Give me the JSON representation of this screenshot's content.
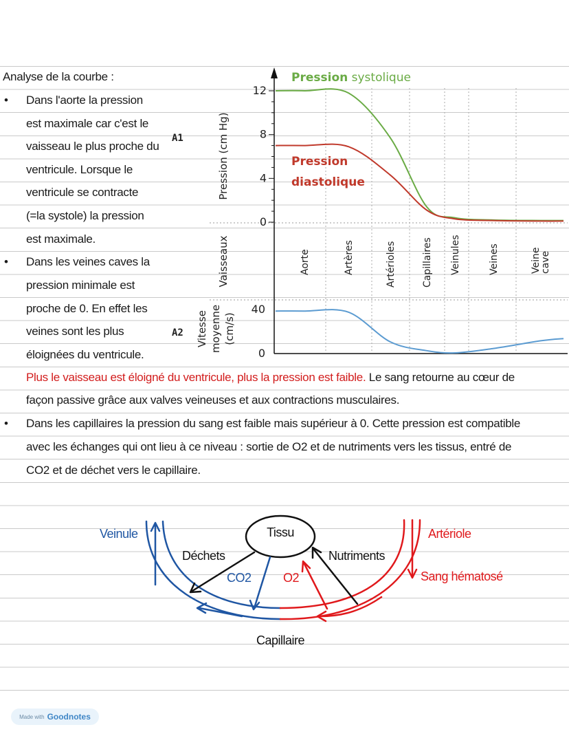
{
  "notes": {
    "title": "Analyse de la courbe :",
    "left_lines": [
      "Dans l'aorte la pression",
      "est maximale car c'est le",
      "vaisseau le plus proche du",
      "ventricule. Lorsque le",
      "ventricule se contracte",
      "(=la systole) la pression",
      "est maximale.",
      "Dans les veines caves la",
      "pression minimale est",
      "proche de 0. En effet les",
      "veines sont les plus",
      "éloignées du ventricule."
    ],
    "conclusion_red": "Plus le vaisseau est éloigné du ventricule, plus la pression est faible.",
    "conclusion_black": " Le sang retourne au cœur de",
    "conclusion_line2": "façon passive grâce aux valves veineuses et aux contractions musculaires.",
    "capillary_lines": [
      "Dans les capillaires la pression du sang est faible mais supérieur à 0. Cette pression est compatible",
      "avec les échanges qui ont lieu à ce niveau : sortie de O2 et de nutriments vers les tissus, entré de",
      "CO2 et de déchet vers le capillaire."
    ],
    "bullet_glyph": "•"
  },
  "chart_data": [
    {
      "type": "line",
      "panel_label": "A1",
      "ylabel": "Pression (cm Hg)",
      "ylim": [
        0,
        12
      ],
      "yticks": [
        "0",
        "4",
        "8",
        "12"
      ],
      "categories": [
        "Aorte",
        "Artères",
        "Artérioles",
        "Capillaires",
        "Veinules",
        "Veines",
        "Veine cave"
      ],
      "xlabel": "Vaisseaux",
      "series": [
        {
          "name_bold": "Pression",
          "name_rest": " systolique",
          "color": "#6aab45",
          "values": [
            12,
            11.8,
            7.7,
            1.4,
            0.4,
            0.2,
            0.15
          ]
        },
        {
          "name_bold": "Pression",
          "name_rest": "diastolique",
          "color": "#c0392b",
          "values": [
            7,
            6.9,
            4.3,
            1.1,
            0.3,
            0.15,
            0.1
          ]
        }
      ]
    },
    {
      "type": "line",
      "panel_label": "A2",
      "ylabel_lines": [
        "Vitesse",
        "moyenne",
        "(cm/s)"
      ],
      "ylim": [
        0,
        40
      ],
      "yticks": [
        "0",
        "40"
      ],
      "categories": [
        "Aorte",
        "Artères",
        "Artérioles",
        "Capillaires",
        "Veinules",
        "Veines",
        "Veine cave"
      ],
      "series": [
        {
          "color": "#5b9bd1",
          "values": [
            38,
            37,
            10,
            2,
            0,
            4,
            11
          ]
        }
      ]
    }
  ],
  "diagram": {
    "tissue": "Tissu",
    "venule": "Veinule",
    "arteriole": "Artériole",
    "oxygenated": "Sang hématosé",
    "waste": "Déchets",
    "nutrients": "Nutriments",
    "co2": "CO2",
    "o2": "O2",
    "capillary": "Capillaire",
    "colors": {
      "venous": "#1f56a3",
      "arterial": "#e0191c",
      "black": "#111111"
    }
  },
  "footer": {
    "made_with": "Made with",
    "brand": "Goodnotes"
  }
}
